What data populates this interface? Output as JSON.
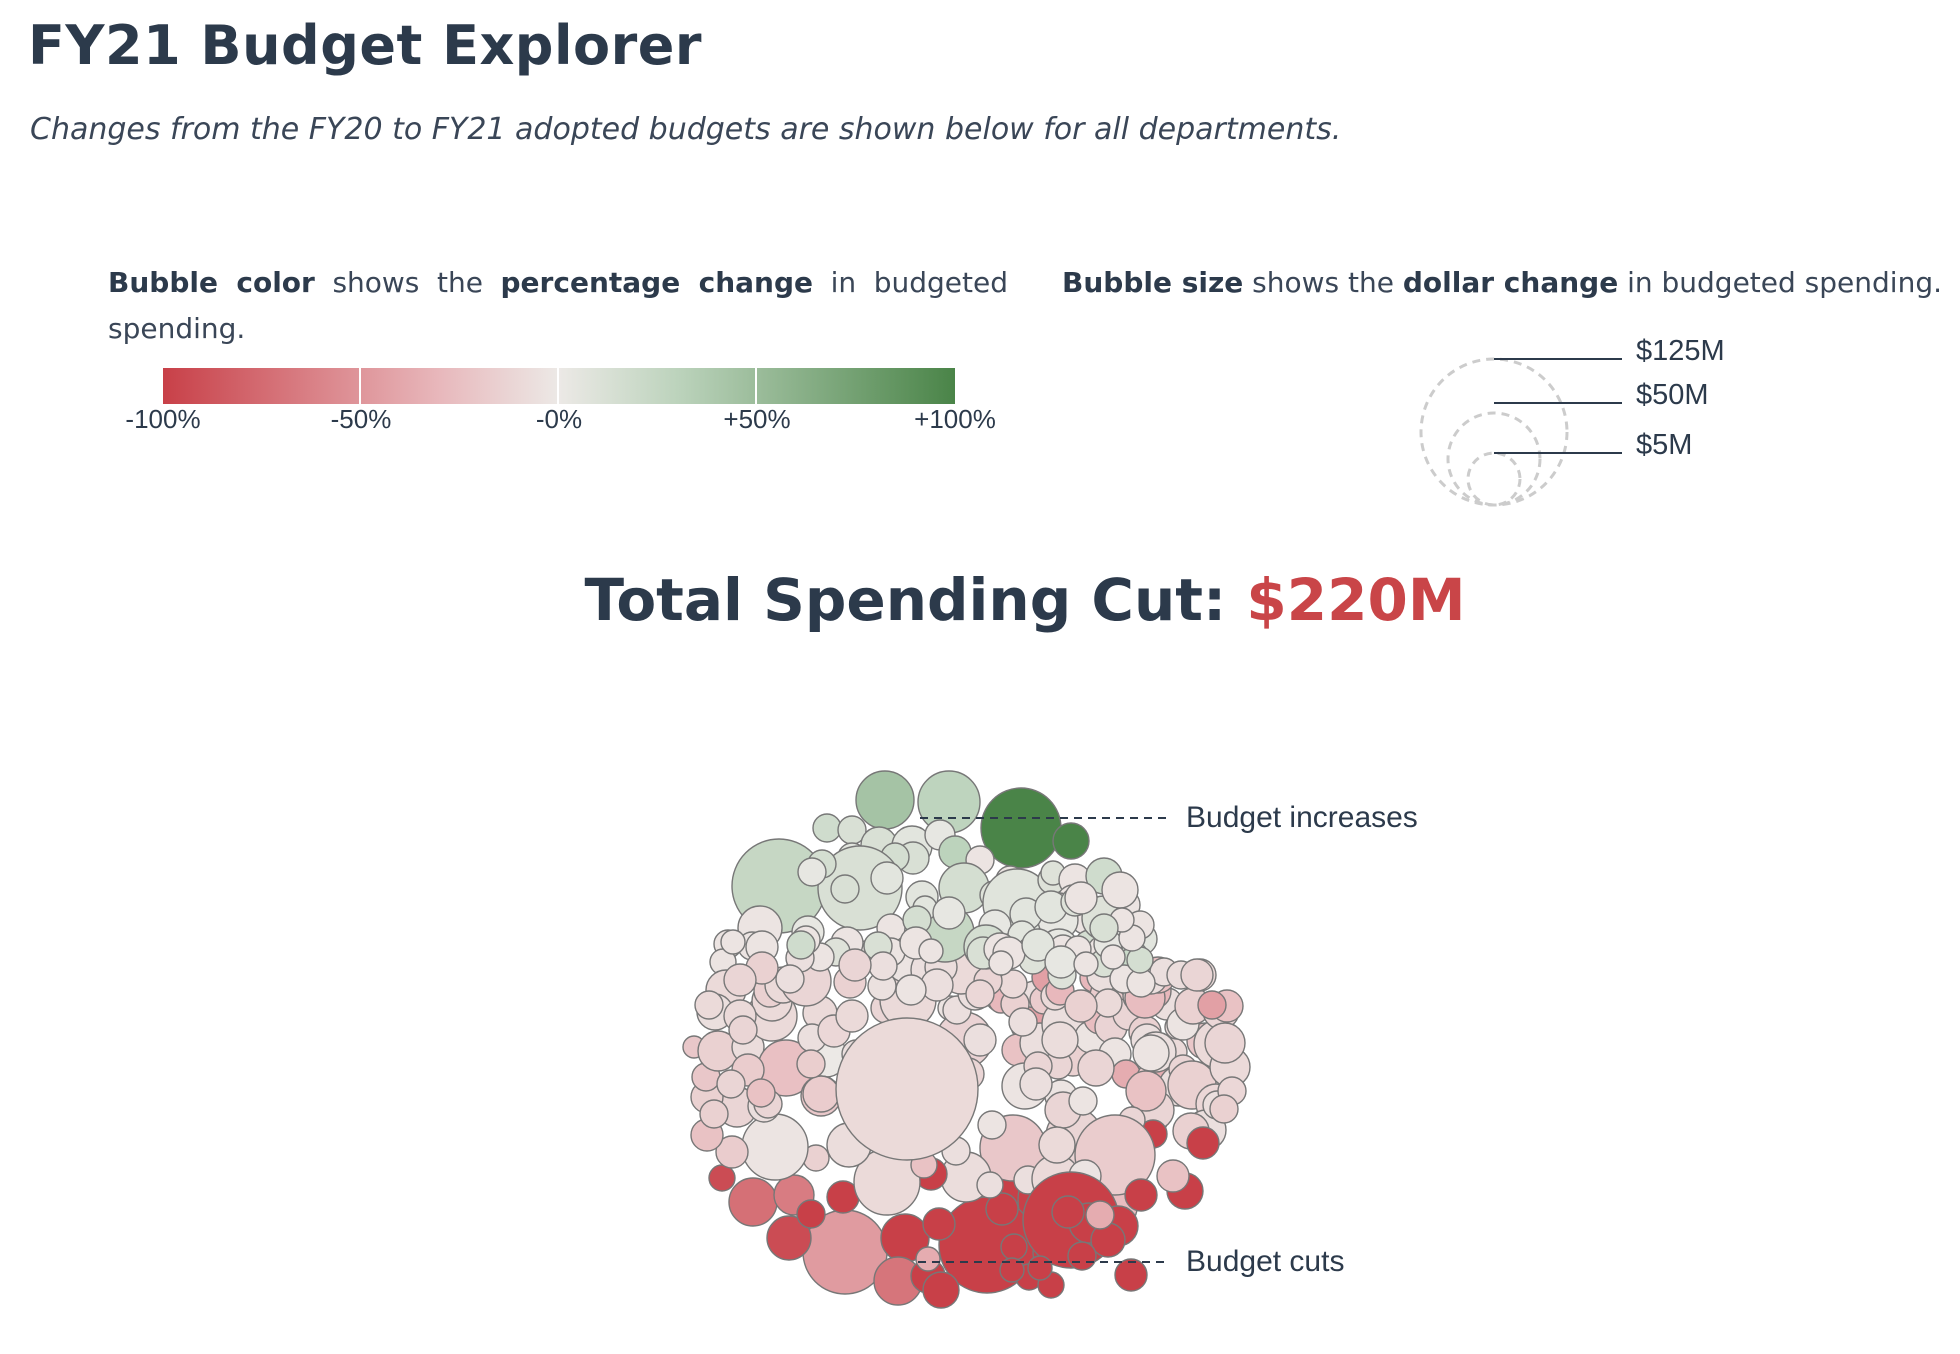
{
  "page": {
    "title": "FY21 Budget Explorer",
    "subtitle": "Changes from the FY20 to FY21 adopted budgets are shown below for all departments."
  },
  "legend": {
    "color": {
      "b1": "Bubble color",
      "t1": " shows the ",
      "b2": "percentage change",
      "t2": " in budgeted spending.",
      "labels": [
        "-100%",
        "-50%",
        "-0%",
        "+50%",
        "+100%"
      ],
      "colors": [
        "#c84048",
        "#e8b8bc",
        "#ece9e6",
        "#bcd3bc",
        "#4a8448"
      ]
    },
    "size": {
      "b1": "Bubble size",
      "t1": " shows the ",
      "b2": "dollar change",
      "t2": " in budgeted spending.",
      "labels": [
        "$125M",
        "$50M",
        "$5M"
      ]
    }
  },
  "total": {
    "label": "Total Spending Cut: ",
    "amount": "$220M"
  },
  "annotations": {
    "increases": "Budget increases",
    "cuts": "Budget cuts"
  },
  "chart_data": {
    "type": "bubble",
    "color_encoding": "percentage change",
    "size_encoding": "dollar change",
    "color_range": [
      -100,
      100
    ],
    "size_reference": [
      125,
      50,
      5
    ],
    "total_spending_cut": "$220M"
  }
}
